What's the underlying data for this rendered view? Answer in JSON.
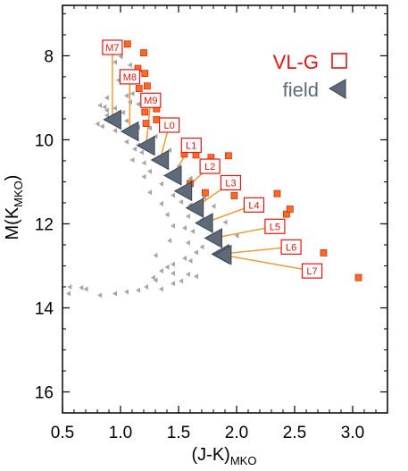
{
  "chart_data": {
    "type": "scatter",
    "title": "",
    "xlabel": {
      "main": "(J-K)",
      "sub": "MKO"
    },
    "ylabel": {
      "main": "M(K",
      "sub": "MKO",
      "close": ")"
    },
    "xlim": [
      0.5,
      3.3
    ],
    "ylim": [
      16.5,
      6.8
    ],
    "y_inverted": true,
    "grid": false,
    "x_ticks": [
      0.5,
      1.0,
      1.5,
      2.0,
      2.5,
      3.0
    ],
    "x_tick_labels": [
      "0.5",
      "1.0",
      "1.5",
      "2.0",
      "2.5",
      "3.0"
    ],
    "y_ticks": [
      8,
      10,
      12,
      14,
      16
    ],
    "y_tick_labels": [
      "8",
      "10",
      "12",
      "14",
      "16"
    ],
    "legend": {
      "position": "top-right",
      "entries": [
        {
          "label": "VL-G",
          "marker": "open-square",
          "color": "#e8150f"
        },
        {
          "label": "field",
          "marker": "left-triangle",
          "color": "#5e6a78"
        }
      ]
    },
    "colors": {
      "vlg_square": "#e8150f",
      "connector": "#f39222",
      "vlg_object_fill": "#f56d21",
      "vlg_object_edge": "#d82a14",
      "field_triangle": "#5e6a78",
      "field_object": "#a6a6a6"
    },
    "spectral_types": [
      {
        "label": "M7",
        "vlg": [
          0.93,
          7.8
        ],
        "field": [
          0.93,
          9.52
        ]
      },
      {
        "label": "M8",
        "vlg": [
          1.08,
          8.5
        ],
        "field": [
          1.08,
          9.8
        ]
      },
      {
        "label": "M9",
        "vlg": [
          1.26,
          9.06
        ],
        "field": [
          1.22,
          10.14
        ]
      },
      {
        "label": "L0",
        "vlg": [
          1.42,
          9.65
        ],
        "field": [
          1.34,
          10.48
        ]
      },
      {
        "label": "L1",
        "vlg": [
          1.61,
          10.13
        ],
        "field": [
          1.45,
          10.85
        ]
      },
      {
        "label": "L2",
        "vlg": [
          1.77,
          10.63
        ],
        "field": [
          1.54,
          11.22
        ]
      },
      {
        "label": "L3",
        "vlg": [
          1.95,
          11.02
        ],
        "field": [
          1.64,
          11.62
        ]
      },
      {
        "label": "L4",
        "vlg": [
          2.15,
          11.55
        ],
        "field": [
          1.72,
          11.98
        ]
      },
      {
        "label": "L5",
        "vlg": [
          2.33,
          12.06
        ],
        "field": [
          1.8,
          12.34
        ]
      },
      {
        "label": "L6",
        "vlg": [
          2.47,
          12.55
        ],
        "field": [
          1.86,
          12.72
        ]
      },
      {
        "label": "L7",
        "vlg": [
          2.65,
          13.12
        ],
        "field": [
          1.88,
          12.74
        ]
      }
    ],
    "vlg_objects": [
      [
        1.06,
        7.72
      ],
      [
        1.2,
        7.93
      ],
      [
        1.15,
        8.3
      ],
      [
        1.21,
        8.42
      ],
      [
        1.16,
        8.78
      ],
      [
        1.23,
        8.72
      ],
      [
        1.31,
        9.26
      ],
      [
        1.31,
        9.52
      ],
      [
        1.21,
        9.34
      ],
      [
        1.22,
        9.61
      ],
      [
        1.62,
        10.12
      ],
      [
        1.55,
        10.34
      ],
      [
        1.65,
        10.36
      ],
      [
        1.78,
        10.42
      ],
      [
        1.93,
        10.38
      ],
      [
        1.6,
        11.04
      ],
      [
        1.73,
        11.26
      ],
      [
        1.9,
        11.12
      ],
      [
        1.98,
        11.33
      ],
      [
        2.35,
        11.28
      ],
      [
        2.43,
        11.77
      ],
      [
        2.46,
        11.65
      ],
      [
        2.35,
        12.0
      ],
      [
        2.75,
        12.69
      ],
      [
        3.05,
        13.28
      ]
    ],
    "field_objects": [
      [
        1.0,
        7.88
      ],
      [
        1.0,
        8.02
      ],
      [
        0.95,
        8.15
      ],
      [
        1.08,
        8.22
      ],
      [
        1.0,
        8.48
      ],
      [
        0.98,
        8.58
      ],
      [
        1.1,
        8.9
      ],
      [
        1.05,
        8.95
      ],
      [
        0.88,
        9.0
      ],
      [
        1.08,
        9.1
      ],
      [
        1.15,
        9.15
      ],
      [
        0.82,
        9.18
      ],
      [
        0.86,
        9.22
      ],
      [
        0.95,
        9.25
      ],
      [
        0.88,
        9.3
      ],
      [
        1.02,
        9.35
      ],
      [
        0.88,
        9.42
      ],
      [
        0.9,
        9.48
      ],
      [
        1.05,
        9.55
      ],
      [
        0.8,
        9.62
      ],
      [
        0.84,
        9.68
      ],
      [
        1.15,
        9.7
      ],
      [
        1.25,
        9.72
      ],
      [
        0.95,
        9.78
      ],
      [
        1.08,
        9.88
      ],
      [
        1.3,
        9.92
      ],
      [
        1.05,
        10.05
      ],
      [
        1.15,
        10.12
      ],
      [
        1.12,
        10.22
      ],
      [
        1.42,
        10.25
      ],
      [
        1.18,
        10.3
      ],
      [
        1.38,
        10.38
      ],
      [
        1.1,
        10.48
      ],
      [
        1.2,
        10.55
      ],
      [
        1.5,
        10.62
      ],
      [
        1.25,
        10.75
      ],
      [
        1.2,
        10.88
      ],
      [
        1.6,
        10.92
      ],
      [
        1.35,
        11.05
      ],
      [
        1.25,
        11.25
      ],
      [
        1.45,
        11.32
      ],
      [
        1.72,
        11.38
      ],
      [
        1.52,
        11.48
      ],
      [
        1.35,
        11.52
      ],
      [
        1.6,
        11.55
      ],
      [
        1.8,
        11.58
      ],
      [
        1.4,
        11.78
      ],
      [
        1.58,
        11.82
      ],
      [
        1.7,
        11.9
      ],
      [
        1.9,
        11.96
      ],
      [
        1.45,
        12.05
      ],
      [
        1.55,
        12.1
      ],
      [
        1.62,
        12.18
      ],
      [
        1.8,
        12.25
      ],
      [
        2.0,
        12.28
      ],
      [
        1.42,
        12.4
      ],
      [
        1.58,
        12.45
      ],
      [
        1.7,
        12.55
      ],
      [
        1.65,
        12.68
      ],
      [
        1.85,
        12.7
      ],
      [
        1.3,
        12.75
      ],
      [
        1.55,
        12.82
      ],
      [
        1.6,
        12.88
      ],
      [
        1.45,
        12.96
      ],
      [
        1.4,
        13.03
      ],
      [
        1.35,
        13.12
      ],
      [
        1.45,
        13.18
      ],
      [
        1.58,
        13.2
      ],
      [
        1.65,
        13.25
      ],
      [
        1.28,
        13.28
      ],
      [
        1.3,
        13.34
      ],
      [
        1.52,
        13.36
      ],
      [
        1.45,
        13.42
      ],
      [
        1.22,
        13.5
      ],
      [
        1.35,
        13.55
      ],
      [
        1.15,
        13.58
      ],
      [
        1.05,
        13.62
      ],
      [
        0.95,
        13.66
      ],
      [
        0.82,
        13.7
      ],
      [
        0.7,
        13.55
      ],
      [
        0.66,
        13.52
      ],
      [
        0.56,
        13.5
      ],
      [
        0.55,
        13.66
      ],
      [
        0.48,
        13.72
      ],
      [
        0.42,
        13.8
      ],
      [
        0.45,
        13.88
      ],
      [
        0.38,
        14.0
      ],
      [
        0.45,
        14.08
      ],
      [
        0.38,
        14.22
      ],
      [
        0.48,
        13.4
      ]
    ]
  }
}
